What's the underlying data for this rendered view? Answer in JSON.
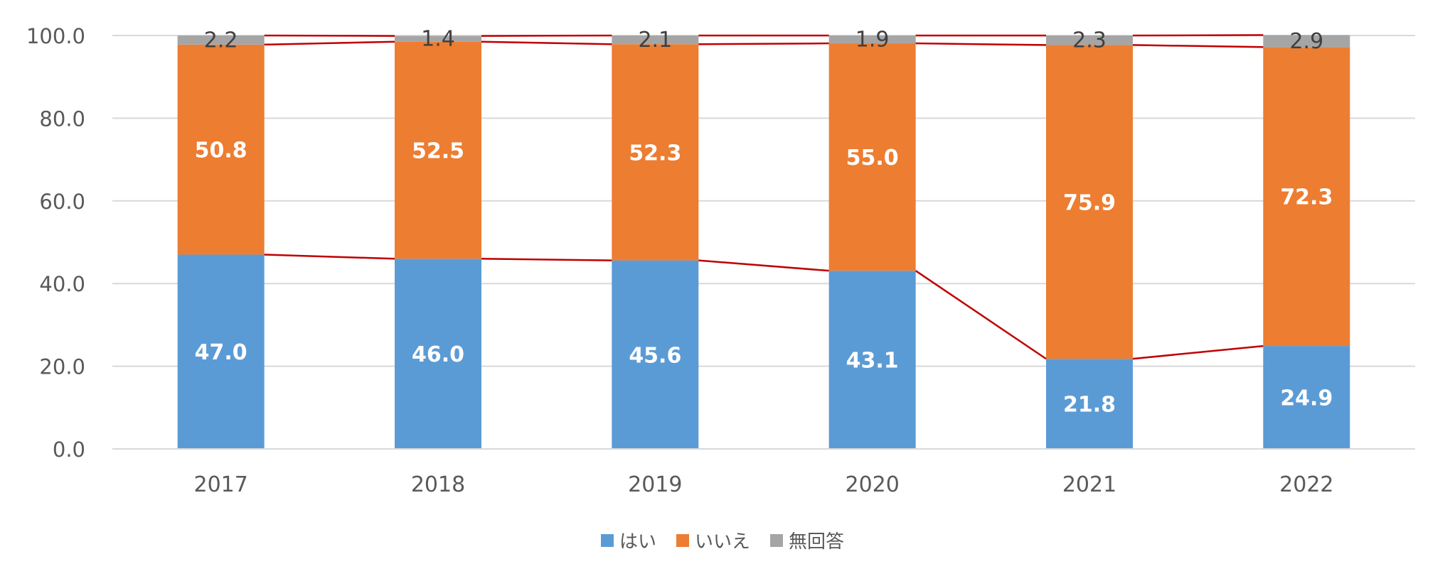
{
  "chart_data": {
    "type": "bar",
    "stacked": true,
    "categories": [
      "2017",
      "2018",
      "2019",
      "2020",
      "2021",
      "2022"
    ],
    "series": [
      {
        "name": "はい",
        "color": "#5B9BD5",
        "values": [
          47.0,
          46.0,
          45.6,
          43.1,
          21.8,
          24.9
        ]
      },
      {
        "name": "いいえ",
        "color": "#ED7D31",
        "values": [
          50.8,
          52.5,
          52.3,
          55.0,
          75.9,
          72.3
        ]
      },
      {
        "name": "無回答",
        "color": "#A5A5A5",
        "values": [
          2.2,
          1.4,
          2.1,
          1.9,
          2.3,
          2.9
        ]
      }
    ],
    "series_lines": true,
    "series_line_color": "#C00000",
    "ylim": [
      0,
      100
    ],
    "yticks": [
      "0.0",
      "20.0",
      "40.0",
      "60.0",
      "80.0",
      "100.0"
    ],
    "grid": true,
    "legend_position": "bottom"
  }
}
